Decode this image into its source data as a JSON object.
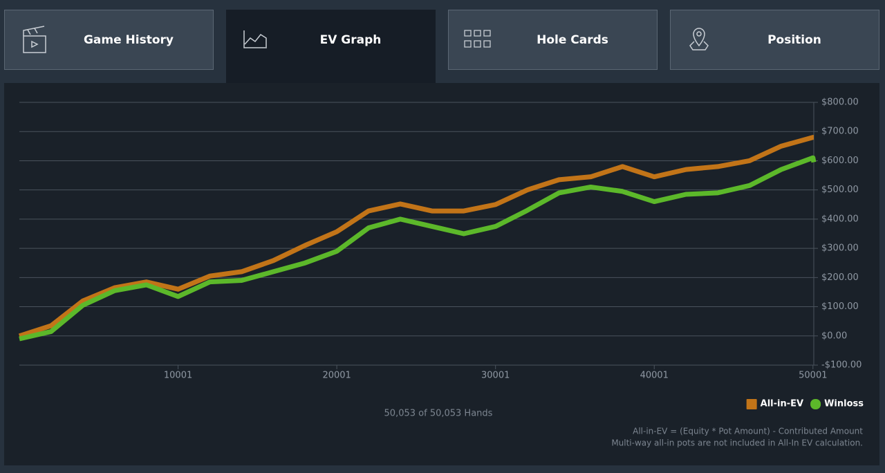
{
  "tabs": [
    "Game History",
    "EV Graph",
    "Hole Cards",
    "Position"
  ],
  "chart_data": {
    "type": "line",
    "x": [
      1,
      2001,
      4001,
      6001,
      8001,
      10001,
      12001,
      14001,
      16001,
      18001,
      20001,
      22001,
      24001,
      26001,
      28001,
      30001,
      32001,
      34001,
      36001,
      38001,
      40001,
      42001,
      44001,
      46001,
      48001,
      50001,
      50053
    ],
    "series": [
      {
        "name": "All-in-EV",
        "color": "#c27418",
        "values": [
          0,
          35,
          120,
          165,
          185,
          160,
          205,
          220,
          258,
          310,
          357,
          428,
          452,
          428,
          428,
          450,
          500,
          535,
          545,
          580,
          545,
          570,
          580,
          600,
          650,
          680,
          680
        ]
      },
      {
        "name": "Winloss",
        "color": "#5cb82a",
        "values": [
          -10,
          15,
          105,
          155,
          175,
          135,
          185,
          190,
          220,
          250,
          290,
          370,
          400,
          375,
          350,
          375,
          430,
          490,
          510,
          495,
          460,
          485,
          490,
          515,
          570,
          610,
          595
        ]
      }
    ],
    "xlim": [
      1,
      50053
    ],
    "xticks": [
      10001,
      20001,
      30001,
      40001,
      50001
    ],
    "ylim": [
      -100,
      800
    ],
    "yticks": [
      {
        "value": -100,
        "label": "-$100.00"
      },
      {
        "value": 0,
        "label": "$0.00"
      },
      {
        "value": 100,
        "label": "$100.00"
      },
      {
        "value": 200,
        "label": "$200.00"
      },
      {
        "value": 300,
        "label": "$300.00"
      },
      {
        "value": 400,
        "label": "$400.00"
      },
      {
        "value": 500,
        "label": "$500.00"
      },
      {
        "value": 600,
        "label": "$600.00"
      },
      {
        "value": 700,
        "label": "$700.00"
      },
      {
        "value": 800,
        "label": "$800.00"
      }
    ],
    "grid": true,
    "legend": "bottom-right"
  },
  "hands_label": "50,053 of 50,053 Hands",
  "footnotes": [
    "All-in-EV = (Equity * Pot Amount) - Contributed Amount",
    "Multi-way all-in pots are not included in All-In EV calculation."
  ]
}
